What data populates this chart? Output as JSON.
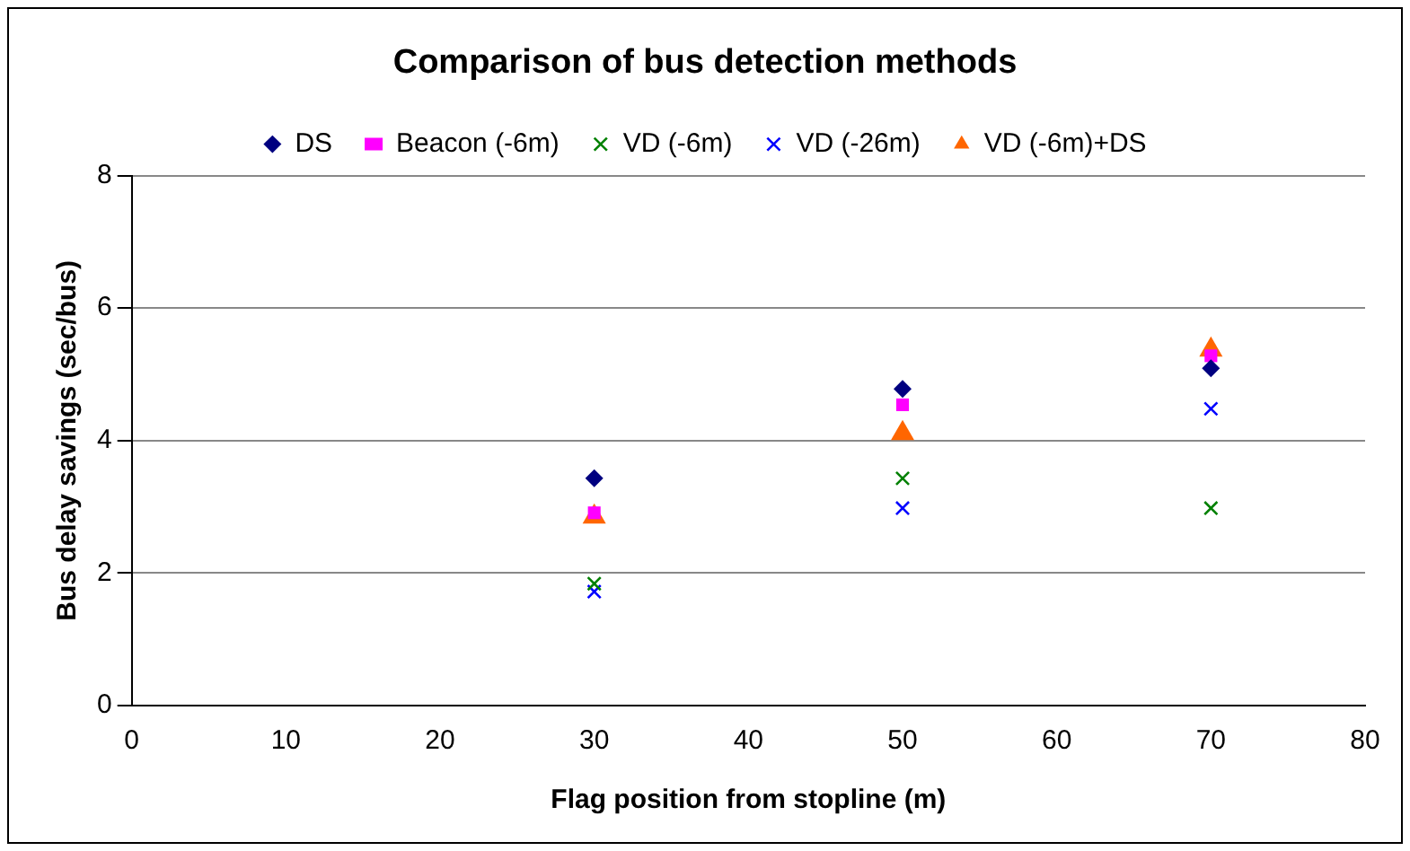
{
  "chart_data": {
    "type": "scatter",
    "title": "Comparison of bus detection methods",
    "xlabel": "Flag position from stopline (m)",
    "ylabel": "Bus delay savings (sec/bus)",
    "x": [
      30,
      50,
      70
    ],
    "series": [
      {
        "name": "DS",
        "color": "#000080",
        "marker": "diamond",
        "values": [
          3.43,
          4.78,
          5.09
        ]
      },
      {
        "name": "Beacon (-6m)",
        "color": "#ff00ff",
        "marker": "square",
        "values": [
          2.91,
          4.54,
          5.28
        ]
      },
      {
        "name": "VD (-6m)",
        "color": "#008000",
        "marker": "cross",
        "values": [
          1.84,
          3.43,
          2.98
        ]
      },
      {
        "name": "VD (-26m)",
        "color": "#0000ff",
        "marker": "cross",
        "values": [
          1.72,
          2.98,
          4.48
        ]
      },
      {
        "name": "VD (-6m)+DS",
        "color": "#ff6600",
        "marker": "triangle",
        "values": [
          2.85,
          4.11,
          5.37
        ]
      }
    ],
    "xlim": [
      0,
      80
    ],
    "xticks": [
      0,
      10,
      20,
      30,
      40,
      50,
      60,
      70,
      80
    ],
    "ylim": [
      0,
      8
    ],
    "yticks": [
      0,
      2,
      4,
      6,
      8
    ],
    "grid": "y",
    "legend": "top"
  }
}
